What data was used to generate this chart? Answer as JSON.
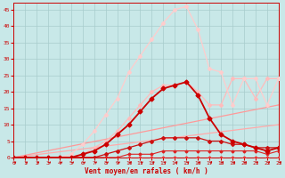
{
  "xlabel": "Vent moyen/en rafales ( km/h )",
  "ylim": [
    0,
    47
  ],
  "xlim": [
    0,
    23
  ],
  "yticks": [
    0,
    5,
    10,
    15,
    20,
    25,
    30,
    35,
    40,
    45
  ],
  "xticks": [
    0,
    1,
    2,
    3,
    4,
    5,
    6,
    7,
    8,
    9,
    10,
    11,
    12,
    13,
    14,
    15,
    16,
    17,
    18,
    19,
    20,
    21,
    22,
    23
  ],
  "bg_color": "#c8e8e8",
  "grid_color": "#a8cccc",
  "lines": [
    {
      "x": [
        0,
        1,
        2,
        3,
        4,
        5,
        6,
        7,
        8,
        9,
        10,
        11,
        12,
        13,
        14,
        15,
        16,
        17,
        18,
        19,
        20,
        21,
        22,
        23
      ],
      "y": [
        0,
        0,
        0,
        0,
        0,
        0,
        0,
        0,
        0,
        0,
        0,
        0,
        0,
        0,
        0,
        0,
        0,
        0,
        0,
        0,
        0,
        0,
        0,
        0
      ],
      "color": "#ee3333",
      "linewidth": 0.8,
      "marker": "D",
      "markersize": 1.5,
      "zorder": 4
    },
    {
      "x": [
        0,
        1,
        2,
        3,
        4,
        5,
        6,
        7,
        8,
        9,
        10,
        11,
        12,
        13,
        14,
        15,
        16,
        17,
        18,
        19,
        20,
        21,
        22,
        23
      ],
      "y": [
        0,
        0,
        0,
        0,
        0,
        0,
        0,
        0,
        0,
        0,
        1,
        1,
        1,
        2,
        2,
        2,
        2,
        2,
        2,
        2,
        2,
        2,
        1,
        2
      ],
      "color": "#dd2222",
      "linewidth": 0.8,
      "marker": "D",
      "markersize": 1.5,
      "zorder": 4
    },
    {
      "x": [
        0,
        1,
        2,
        3,
        4,
        5,
        6,
        7,
        8,
        9,
        10,
        11,
        12,
        13,
        14,
        15,
        16,
        17,
        18,
        19,
        20,
        21,
        22,
        23
      ],
      "y": [
        0,
        0,
        0,
        0,
        0,
        0,
        0,
        0,
        1,
        2,
        3,
        4,
        5,
        6,
        6,
        6,
        6,
        5,
        5,
        4,
        4,
        3,
        3,
        3
      ],
      "color": "#cc1111",
      "linewidth": 0.9,
      "marker": "D",
      "markersize": 2.0,
      "zorder": 4
    },
    {
      "x": [
        0,
        1,
        2,
        3,
        4,
        5,
        6,
        7,
        8,
        9,
        10,
        11,
        12,
        13,
        14,
        15,
        16,
        17,
        18,
        19,
        20,
        21,
        22,
        23
      ],
      "y": [
        0,
        0,
        0,
        0,
        0,
        0,
        1,
        2,
        4,
        7,
        10,
        14,
        18,
        21,
        22,
        23,
        19,
        12,
        7,
        5,
        4,
        3,
        2,
        3
      ],
      "color": "#cc0000",
      "linewidth": 1.3,
      "marker": "D",
      "markersize": 2.5,
      "zorder": 5
    },
    {
      "x": [
        0,
        23
      ],
      "y": [
        0,
        10
      ],
      "color": "#ffaaaa",
      "linewidth": 0.9,
      "marker": null,
      "markersize": 0,
      "zorder": 2
    },
    {
      "x": [
        0,
        23
      ],
      "y": [
        0,
        16
      ],
      "color": "#ff9999",
      "linewidth": 0.9,
      "marker": null,
      "markersize": 0,
      "zorder": 2
    },
    {
      "x": [
        0,
        1,
        2,
        3,
        4,
        5,
        6,
        7,
        8,
        9,
        10,
        11,
        12,
        13,
        14,
        15,
        16,
        17,
        18,
        19,
        20,
        21,
        22,
        23
      ],
      "y": [
        0,
        0,
        0,
        0,
        0,
        0,
        1,
        3,
        5,
        8,
        12,
        16,
        20,
        22,
        22,
        23,
        20,
        16,
        16,
        24,
        24,
        18,
        24,
        24
      ],
      "color": "#ffbbbb",
      "linewidth": 0.9,
      "marker": "D",
      "markersize": 2.0,
      "zorder": 3
    },
    {
      "x": [
        0,
        1,
        2,
        3,
        4,
        5,
        6,
        7,
        8,
        9,
        10,
        11,
        12,
        13,
        14,
        15,
        16,
        17,
        18,
        19,
        20,
        21,
        22,
        23
      ],
      "y": [
        0,
        0,
        0,
        0,
        0,
        1,
        4,
        8,
        13,
        18,
        26,
        31,
        36,
        41,
        45,
        46,
        39,
        27,
        26,
        16,
        24,
        24,
        16,
        24
      ],
      "color": "#ffcccc",
      "linewidth": 0.9,
      "marker": "D",
      "markersize": 2.0,
      "zorder": 3
    }
  ]
}
